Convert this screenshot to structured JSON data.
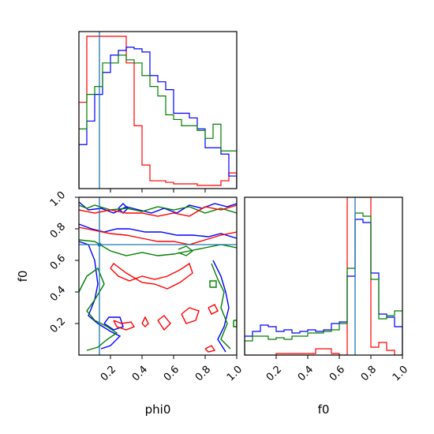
{
  "chart_data": [
    {
      "type": "line",
      "panel": "hist-phi0",
      "xlim": [
        0,
        1
      ],
      "ylim": [
        0,
        1
      ],
      "bin_edges": [
        0,
        0.05,
        0.1,
        0.15,
        0.2,
        0.25,
        0.3,
        0.35,
        0.4,
        0.45,
        0.5,
        0.55,
        0.6,
        0.65,
        0.7,
        0.75,
        0.8,
        0.85,
        0.9,
        0.95,
        1.0
      ],
      "series": [
        {
          "color": "#ff0000",
          "values": [
            0.55,
            0.97,
            0.97,
            0.97,
            0.97,
            0.97,
            0.8,
            0.4,
            0.15,
            0.05,
            0.05,
            0.04,
            0.03,
            0.03,
            0.03,
            0.02,
            0.02,
            0.02,
            0.05,
            0.1
          ]
        },
        {
          "color": "#0000ff",
          "values": [
            0.28,
            0.43,
            0.6,
            0.74,
            0.85,
            0.88,
            0.9,
            0.89,
            0.87,
            0.72,
            0.68,
            0.63,
            0.48,
            0.48,
            0.45,
            0.38,
            0.26,
            0.26,
            0.22,
            0.08
          ]
        },
        {
          "color": "#008000",
          "values": [
            0.38,
            0.6,
            0.65,
            0.8,
            0.8,
            0.85,
            0.82,
            0.8,
            0.72,
            0.65,
            0.59,
            0.47,
            0.44,
            0.4,
            0.4,
            0.37,
            0.32,
            0.41,
            0.24,
            0.24
          ]
        }
      ],
      "truth_x": 0.13,
      "truth_color": "#1f77b4",
      "xticks": [
        0.2,
        0.4,
        0.6,
        0.8
      ]
    },
    {
      "type": "line",
      "panel": "contour-phi0-f0",
      "xlabel": "phi0",
      "ylabel": "f0",
      "xlim": [
        0,
        1
      ],
      "ylim": [
        0,
        1
      ],
      "xticks": [
        0.2,
        0.4,
        0.6,
        0.8,
        1.0
      ],
      "yticks": [
        0.2,
        0.4,
        0.6,
        0.8,
        1.0
      ],
      "xtick_labels": [
        "0.2",
        "0.4",
        "0.6",
        "0.8",
        "1.0"
      ],
      "ytick_labels": [
        "0.2",
        "0.4",
        "0.6",
        "0.8",
        "1.0"
      ],
      "truth_x": 0.13,
      "truth_y": 0.7,
      "truth_color": "#1f77b4",
      "series": [
        {
          "color": "#0000ff",
          "contours": [
            [
              [
                0,
                0.97
              ],
              [
                0.06,
                0.92
              ],
              [
                0.14,
                0.93
              ],
              [
                0.22,
                0.9
              ],
              [
                0.3,
                0.94
              ],
              [
                0.38,
                0.92
              ],
              [
                0.46,
                0.9
              ],
              [
                0.54,
                0.93
              ],
              [
                0.62,
                0.9
              ],
              [
                0.7,
                0.95
              ],
              [
                0.78,
                0.93
              ],
              [
                0.86,
                0.96
              ],
              [
                0.94,
                0.94
              ],
              [
                1,
                0.96
              ]
            ],
            [
              [
                0,
                0.83
              ],
              [
                0.08,
                0.8
              ],
              [
                0.16,
                0.78
              ],
              [
                0.24,
                0.8
              ],
              [
                0.32,
                0.8
              ],
              [
                0.42,
                0.78
              ],
              [
                0.52,
                0.78
              ],
              [
                0.62,
                0.76
              ],
              [
                0.72,
                0.76
              ],
              [
                0.82,
                0.75
              ],
              [
                0.9,
                0.77
              ],
              [
                1,
                0.74
              ]
            ],
            [
              [
                0,
                0.72
              ],
              [
                0.06,
                0.7
              ],
              [
                0.1,
                0.6
              ],
              [
                0.12,
                0.45
              ],
              [
                0.1,
                0.35
              ],
              [
                0.06,
                0.25
              ],
              [
                0.12,
                0.2
              ],
              [
                0.2,
                0.15
              ],
              [
                0.26,
                0.12
              ],
              [
                0.2,
                0.06
              ],
              [
                0.14,
                0.04
              ]
            ],
            [
              [
                0.85,
                0.6
              ],
              [
                0.9,
                0.5
              ],
              [
                0.93,
                0.4
              ],
              [
                0.95,
                0.3
              ],
              [
                0.92,
                0.18
              ],
              [
                0.88,
                0.1
              ],
              [
                0.93,
                0.02
              ]
            ],
            [
              [
                0.16,
                0.2
              ],
              [
                0.22,
                0.16
              ],
              [
                0.28,
                0.18
              ],
              [
                0.26,
                0.24
              ],
              [
                0.19,
                0.24
              ],
              [
                0.16,
                0.2
              ]
            ],
            [
              [
                0.25,
                0.93
              ],
              [
                0.28,
                0.9
              ],
              [
                0.31,
                0.93
              ],
              [
                0.28,
                0.96
              ],
              [
                0.25,
                0.93
              ]
            ]
          ]
        },
        {
          "color": "#008000",
          "contours": [
            [
              [
                0,
                0.95
              ],
              [
                0.05,
                0.93
              ],
              [
                0.1,
                0.95
              ],
              [
                0.2,
                0.92
              ],
              [
                0.3,
                0.93
              ],
              [
                0.4,
                0.91
              ],
              [
                0.5,
                0.94
              ],
              [
                0.6,
                0.92
              ],
              [
                0.7,
                0.94
              ],
              [
                0.8,
                0.9
              ],
              [
                0.9,
                0.93
              ],
              [
                1,
                0.9
              ]
            ],
            [
              [
                0,
                0.73
              ],
              [
                0.1,
                0.72
              ],
              [
                0.2,
                0.66
              ],
              [
                0.3,
                0.63
              ],
              [
                0.4,
                0.65
              ],
              [
                0.5,
                0.63
              ],
              [
                0.6,
                0.64
              ],
              [
                0.7,
                0.66
              ],
              [
                0.8,
                0.68
              ],
              [
                0.9,
                0.7
              ],
              [
                1,
                0.68
              ]
            ],
            [
              [
                0,
                0.4
              ],
              [
                0.05,
                0.5
              ],
              [
                0.12,
                0.55
              ],
              [
                0.16,
                0.45
              ],
              [
                0.1,
                0.35
              ],
              [
                0.05,
                0.28
              ],
              [
                0.1,
                0.22
              ],
              [
                0.18,
                0.18
              ],
              [
                0.24,
                0.14
              ],
              [
                0.18,
                0.1
              ],
              [
                0.12,
                0.05
              ],
              [
                0.05,
                0.03
              ]
            ],
            [
              [
                0.84,
                0.58
              ],
              [
                0.88,
                0.48
              ],
              [
                0.92,
                0.4
              ],
              [
                0.9,
                0.3
              ],
              [
                0.94,
                0.2
              ],
              [
                0.9,
                0.1
              ],
              [
                0.96,
                0.04
              ]
            ],
            [
              [
                0.83,
                0.43
              ],
              [
                0.87,
                0.43
              ],
              [
                0.87,
                0.47
              ],
              [
                0.83,
                0.47
              ],
              [
                0.83,
                0.43
              ]
            ],
            [
              [
                0.63,
                0.65
              ],
              [
                0.68,
                0.63
              ],
              [
                0.72,
                0.66
              ],
              [
                0.68,
                0.69
              ],
              [
                0.63,
                0.67
              ]
            ],
            [
              [
                0.98,
                0.22
              ],
              [
                1,
                0.22
              ],
              [
                1,
                0.18
              ],
              [
                0.98,
                0.18
              ],
              [
                0.98,
                0.22
              ]
            ]
          ]
        },
        {
          "color": "#ff0000",
          "contours": [
            [
              [
                0,
                0.92
              ],
              [
                0.1,
                0.9
              ],
              [
                0.2,
                0.92
              ],
              [
                0.3,
                0.9
              ],
              [
                0.4,
                0.9
              ],
              [
                0.5,
                0.88
              ],
              [
                0.6,
                0.9
              ],
              [
                0.7,
                0.88
              ],
              [
                0.8,
                0.94
              ],
              [
                0.9,
                0.92
              ],
              [
                1,
                0.95
              ]
            ],
            [
              [
                0,
                0.81
              ],
              [
                0.1,
                0.79
              ],
              [
                0.2,
                0.77
              ],
              [
                0.3,
                0.76
              ],
              [
                0.4,
                0.74
              ],
              [
                0.5,
                0.72
              ],
              [
                0.6,
                0.72
              ],
              [
                0.7,
                0.7
              ],
              [
                0.8,
                0.73
              ],
              [
                0.9,
                0.76
              ],
              [
                1,
                0.78
              ]
            ],
            [
              [
                0.2,
                0.55
              ],
              [
                0.25,
                0.5
              ],
              [
                0.32,
                0.47
              ],
              [
                0.4,
                0.5
              ],
              [
                0.48,
                0.48
              ],
              [
                0.56,
                0.5
              ],
              [
                0.64,
                0.54
              ],
              [
                0.7,
                0.58
              ],
              [
                0.72,
                0.52
              ],
              [
                0.64,
                0.46
              ],
              [
                0.56,
                0.42
              ],
              [
                0.48,
                0.45
              ],
              [
                0.4,
                0.46
              ],
              [
                0.3,
                0.52
              ],
              [
                0.22,
                0.58
              ],
              [
                0.2,
                0.55
              ]
            ],
            [
              [
                0.22,
                0.22
              ],
              [
                0.27,
                0.2
              ],
              [
                0.33,
                0.21
              ],
              [
                0.35,
                0.18
              ],
              [
                0.3,
                0.16
              ],
              [
                0.24,
                0.18
              ],
              [
                0.22,
                0.22
              ]
            ],
            [
              [
                0.4,
                0.2
              ],
              [
                0.42,
                0.24
              ],
              [
                0.44,
                0.2
              ],
              [
                0.42,
                0.18
              ],
              [
                0.4,
                0.2
              ]
            ],
            [
              [
                0.5,
                0.22
              ],
              [
                0.54,
                0.25
              ],
              [
                0.58,
                0.2
              ],
              [
                0.54,
                0.16
              ],
              [
                0.5,
                0.22
              ]
            ],
            [
              [
                0.65,
                0.26
              ],
              [
                0.7,
                0.3
              ],
              [
                0.76,
                0.28
              ],
              [
                0.74,
                0.22
              ],
              [
                0.68,
                0.2
              ],
              [
                0.65,
                0.26
              ]
            ],
            [
              [
                0.82,
                0.3
              ],
              [
                0.86,
                0.32
              ],
              [
                0.88,
                0.28
              ],
              [
                0.84,
                0.26
              ],
              [
                0.82,
                0.3
              ]
            ],
            [
              [
                0.8,
                0.04
              ],
              [
                0.84,
                0.06
              ],
              [
                0.86,
                0.03
              ],
              [
                0.82,
                0.02
              ],
              [
                0.8,
                0.04
              ]
            ]
          ]
        }
      ]
    },
    {
      "type": "line",
      "panel": "hist-f0",
      "xlabel": "f0",
      "xlim": [
        0,
        1
      ],
      "ylim": [
        0,
        1
      ],
      "xticks": [
        0.2,
        0.4,
        0.6,
        0.8,
        1.0
      ],
      "xtick_labels": [
        "0.2",
        "0.4",
        "0.6",
        "0.8",
        "1.0"
      ],
      "bin_edges": [
        0,
        0.05,
        0.1,
        0.15,
        0.2,
        0.25,
        0.3,
        0.35,
        0.4,
        0.45,
        0.5,
        0.55,
        0.6,
        0.65,
        0.7,
        0.75,
        0.8,
        0.85,
        0.9,
        0.95,
        1.0
      ],
      "series": [
        {
          "color": "#ff0000",
          "values": [
            0.0,
            0.0,
            0.0,
            0.0,
            0.01,
            0.01,
            0.01,
            0.01,
            0.01,
            0.04,
            0.04,
            0.01,
            0.0,
            1.0,
            1.0,
            1.0,
            0.05,
            0.08,
            0.03,
            0.0
          ]
        },
        {
          "color": "#0000ff",
          "values": [
            0.12,
            0.15,
            0.19,
            0.18,
            0.15,
            0.16,
            0.14,
            0.15,
            0.16,
            0.15,
            0.16,
            0.2,
            0.21,
            0.5,
            0.86,
            0.84,
            0.52,
            0.26,
            0.24,
            0.18
          ]
        },
        {
          "color": "#008000",
          "values": [
            0.09,
            0.12,
            0.12,
            0.1,
            0.11,
            0.1,
            0.12,
            0.12,
            0.14,
            0.14,
            0.15,
            0.16,
            0.2,
            0.55,
            0.9,
            0.88,
            0.48,
            0.23,
            0.25,
            0.28
          ]
        }
      ],
      "truth_x": 0.7,
      "truth_color": "#1f77b4"
    }
  ]
}
